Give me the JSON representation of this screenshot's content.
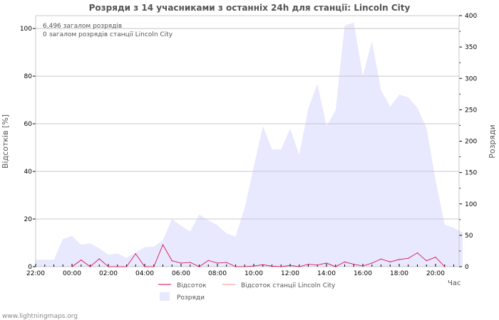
{
  "chart_data": {
    "type": "line",
    "title": "Розряди з 14 учасниками з останніх 24h для станції: Lincoln City",
    "annotations": [
      "6,496 загалом розрядів",
      "0 загалом розрядів станції Lincoln City"
    ],
    "xlabel": "Час",
    "ylabel_left": "Відсотків   [%]",
    "ylabel_right": "Розряди",
    "x_ticks": [
      "22:00",
      "00:00",
      "02:00",
      "04:00",
      "06:00",
      "08:00",
      "10:00",
      "12:00",
      "14:00",
      "16:00",
      "18:00",
      "20:00"
    ],
    "y_left_ticks": [
      0,
      20,
      40,
      60,
      80,
      100
    ],
    "y_right_ticks": [
      0,
      50,
      100,
      150,
      200,
      250,
      300,
      350,
      400
    ],
    "ylim_left": [
      0,
      105.4
    ],
    "ylim_right": [
      0,
      400
    ],
    "x_start": "22:00",
    "interval_minutes": 30,
    "series": [
      {
        "name": "Відсоток",
        "axis": "left",
        "color": "#d8003c",
        "values": [
          null,
          null,
          null,
          null,
          0,
          2.8,
          0,
          3.3,
          0,
          0,
          0,
          5.4,
          0,
          0,
          9.2,
          2.5,
          1.5,
          1.8,
          0,
          2.6,
          1.5,
          1.8,
          0,
          0,
          0.3,
          0.8,
          0.2,
          0,
          0.5,
          0,
          1.0,
          0.7,
          1.5,
          0,
          2.0,
          1.0,
          0.3,
          1.5,
          3.2,
          2.0,
          3.0,
          3.5,
          5.8,
          2.5,
          4.0,
          0,
          null,
          null
        ]
      },
      {
        "name": "Відсоток станції Lincoln City",
        "axis": "left",
        "color": "#ff8c8c",
        "values": []
      },
      {
        "name": "Розряди",
        "axis": "right",
        "type": "area",
        "color": "#e8e8ff",
        "values": [
          11,
          11,
          11,
          44,
          49,
          35,
          37,
          29,
          19,
          21,
          14,
          23,
          31,
          32,
          42,
          76,
          65,
          56,
          83,
          74,
          66,
          53,
          48,
          94,
          159,
          224,
          187,
          187,
          220,
          178,
          252,
          291,
          224,
          249,
          384,
          389,
          304,
          359,
          281,
          255,
          274,
          270,
          253,
          221,
          138,
          67,
          62,
          54
        ]
      }
    ]
  },
  "footer": "www.lightningmaps.org"
}
